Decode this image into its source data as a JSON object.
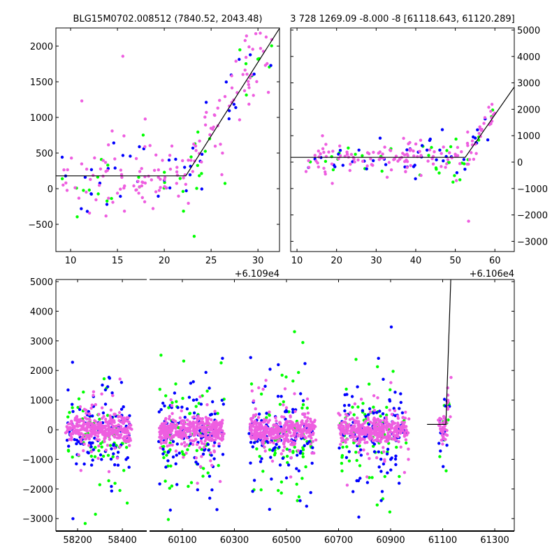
{
  "chart_data": [
    {
      "type": "scatter",
      "title": "BLG15M0702.008512 (7840.52, 2043.48)",
      "x_offset_label": "+6.109e4",
      "xlim": [
        8.43,
        32.3
      ],
      "ylim": [
        -882,
        2255
      ],
      "xticks": [
        "10",
        "15",
        "20",
        "25",
        "30"
      ],
      "xtick_values": [
        10,
        15,
        20,
        25,
        30
      ],
      "yticks": [
        "−500",
        "0",
        "500",
        "1000",
        "1500",
        "2000"
      ],
      "ytick_values": [
        -500,
        0,
        500,
        1000,
        1500,
        2000
      ],
      "yaxis_side": "left",
      "model": {
        "baseline": 180,
        "break_x": 22.3,
        "slope": 207
      },
      "points": {
        "x_range": [
          8.6,
          31.5
        ],
        "noise": 250,
        "counts": {
          "magenta": 150,
          "blue": 45,
          "green": 40
        },
        "seed": 11
      }
    },
    {
      "type": "scatter",
      "title": "3 728 1269.09 -8.000 -8 [61118.643, 61120.289]",
      "x_offset_label": "+6.106e4",
      "xlim": [
        8.4,
        64.9
      ],
      "ylim": [
        -3386,
        5079
      ],
      "xticks": [
        "10",
        "20",
        "30",
        "40",
        "50",
        "60"
      ],
      "xtick_values": [
        10,
        20,
        30,
        40,
        50,
        60
      ],
      "yticks": [
        "−3000",
        "−2000",
        "−1000",
        "0",
        "1000",
        "2000",
        "3000",
        "4000",
        "5000"
      ],
      "ytick_values": [
        -3000,
        -2000,
        -1000,
        0,
        1000,
        2000,
        3000,
        4000,
        5000
      ],
      "yaxis_side": "right",
      "model": {
        "baseline": 180,
        "break_x": 52.5,
        "slope": 215
      },
      "points": {
        "x_range": [
          12,
          60
        ],
        "noise": 300,
        "counts": {
          "magenta": 140,
          "blue": 45,
          "green": 35
        },
        "seed": 23
      }
    },
    {
      "type": "scatter",
      "broken_x_axis": true,
      "xlim_left": [
        58103,
        58509
      ],
      "xlim_right": [
        59974,
        61375
      ],
      "ylim": [
        -3420,
        5071
      ],
      "xticks": [
        "58200",
        "58400",
        "60100",
        "60300",
        "60500",
        "60700",
        "60900",
        "61100",
        "61300"
      ],
      "xtick_values": [
        58200,
        58400,
        60100,
        60300,
        60500,
        60700,
        60900,
        61100,
        61300
      ],
      "yticks": [
        "−3000",
        "−2000",
        "−1000",
        "0",
        "1000",
        "2000",
        "3000",
        "4000",
        "5000"
      ],
      "ytick_values": [
        -3000,
        -2000,
        -1000,
        0,
        1000,
        2000,
        3000,
        4000,
        5000
      ],
      "model": {
        "baseline": 180,
        "flat_from": 61040,
        "break_x": 61112.3,
        "slope": 207
      },
      "seasons": [
        {
          "range": [
            58150,
            58437
          ],
          "n": 520
        },
        {
          "range": [
            60012,
            60259
          ],
          "n": 560
        },
        {
          "range": [
            60361,
            60608
          ],
          "n": 560
        },
        {
          "range": [
            60702,
            60965
          ],
          "n": 560
        },
        {
          "range": [
            61086,
            61128
          ],
          "n": 70
        }
      ],
      "seed": 5
    }
  ],
  "colors": {
    "magenta": "#ee5ee0",
    "blue": "#0000ff",
    "green": "#00ff00",
    "line": "#000000"
  }
}
